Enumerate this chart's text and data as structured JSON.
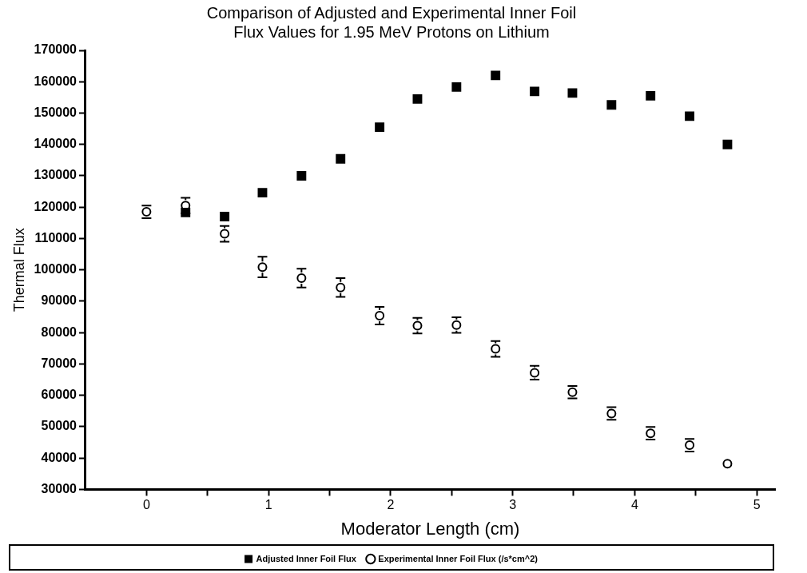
{
  "chart_data": {
    "type": "scatter",
    "title": "Comparison of Adjusted and Experimental Inner Foil\nFlux Values for 1.95 MeV Protons on Lithium",
    "xlabel": "Moderator Length (cm)",
    "ylabel": "Thermal Flux",
    "xlim": [
      -0.5,
      5.15
    ],
    "xticks": [
      0,
      {
        "value": 0.5,
        "label": null
      },
      1,
      {
        "value": 1.5,
        "label": null
      },
      2,
      {
        "value": 2.5,
        "label": null
      },
      3,
      {
        "value": 3.5,
        "label": null
      },
      4,
      {
        "value": 4.5,
        "label": null
      },
      5
    ],
    "ylim": [
      30000,
      170000
    ],
    "yticks": [
      30000,
      40000,
      50000,
      60000,
      70000,
      80000,
      90000,
      100000,
      110000,
      120000,
      130000,
      140000,
      150000,
      160000,
      170000
    ],
    "grid": false,
    "legend": "bottom",
    "series": [
      {
        "name": "Adjusted Inner Foil Flux",
        "color": "#000000",
        "marker": "square",
        "x": [
          0.32,
          0.64,
          0.95,
          1.27,
          1.59,
          1.91,
          2.22,
          2.54,
          2.86,
          3.18,
          3.49,
          3.81,
          4.13,
          4.45,
          4.76
        ],
        "values": [
          118300,
          117000,
          124600,
          130000,
          135400,
          145500,
          154500,
          158300,
          162000,
          156900,
          156400,
          152600,
          155500,
          149000,
          140000
        ]
      },
      {
        "name": "Experimental Inner Foil Flux (/s*cm^2)",
        "color": "#000000",
        "marker": "circle",
        "x": [
          0,
          0.32,
          0.64,
          0.95,
          1.27,
          1.59,
          1.91,
          2.22,
          2.54,
          2.86,
          3.18,
          3.49,
          3.81,
          4.13,
          4.45,
          4.76
        ],
        "values": [
          118500,
          120500,
          111500,
          100900,
          97400,
          94400,
          85400,
          82200,
          82400,
          74800,
          67200,
          61000,
          54200,
          47900,
          44100,
          38200
        ],
        "errors": [
          2000,
          2500,
          2500,
          3300,
          3000,
          3000,
          2800,
          2500,
          2500,
          2500,
          2200,
          2000,
          2000,
          2000,
          2000,
          null
        ]
      }
    ]
  }
}
